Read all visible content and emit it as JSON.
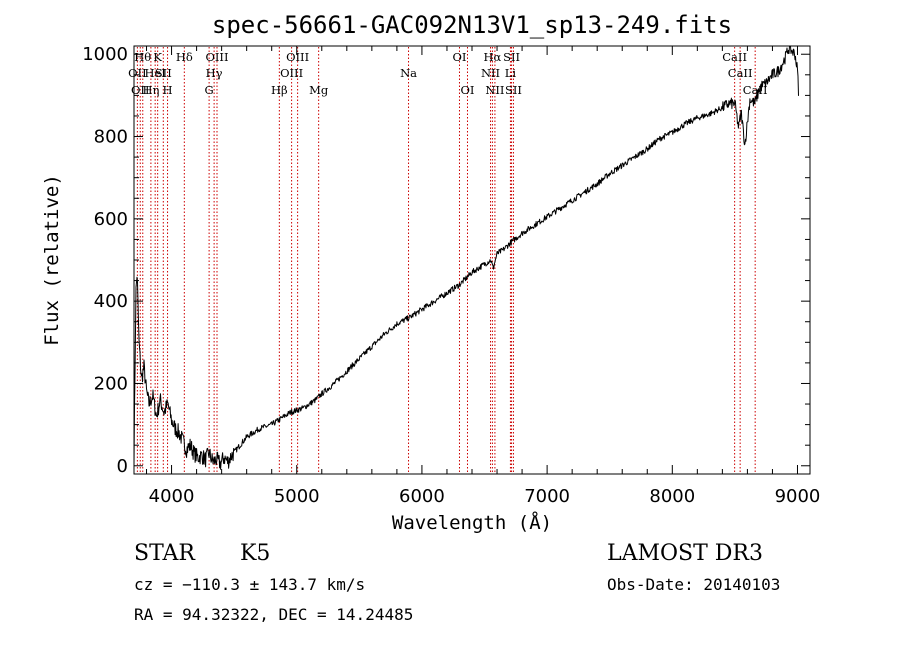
{
  "chart_data": {
    "type": "line",
    "title": "spec-56661-GAC092N13V1_sp13-249.fits",
    "xlabel": "Wavelength (Å)",
    "ylabel": "Flux (relative)",
    "xlim": [
      3700,
      9100
    ],
    "ylim": [
      -20,
      1020
    ],
    "x_ticks": [
      4000,
      5000,
      6000,
      7000,
      8000,
      9000
    ],
    "x_tick_labels": [
      "4000",
      "5000",
      "6000",
      "7000",
      "8000",
      "9000"
    ],
    "y_ticks": [
      0,
      200,
      400,
      600,
      800,
      1000
    ],
    "y_tick_labels": [
      "0",
      "200",
      "400",
      "600",
      "800",
      "1000"
    ],
    "series": [
      {
        "name": "spectrum",
        "color": "#000000",
        "x": [
          3700,
          3715,
          3725,
          3740,
          3760,
          3780,
          3800,
          3820,
          3850,
          3880,
          3910,
          3940,
          3970,
          4000,
          4030,
          4060,
          4090,
          4120,
          4150,
          4180,
          4210,
          4240,
          4270,
          4300,
          4330,
          4360,
          4390,
          4420,
          4450,
          4480,
          4520,
          4560,
          4600,
          4650,
          4700,
          4750,
          4800,
          4850,
          4900,
          4950,
          5000,
          5050,
          5100,
          5150,
          5200,
          5300,
          5400,
          5500,
          5600,
          5700,
          5800,
          5900,
          6000,
          6100,
          6200,
          6250,
          6300,
          6350,
          6400,
          6450,
          6500,
          6550,
          6570,
          6600,
          6650,
          6700,
          6800,
          6900,
          7000,
          7100,
          7200,
          7300,
          7400,
          7500,
          7600,
          7700,
          7800,
          7900,
          8000,
          8100,
          8200,
          8300,
          8400,
          8450,
          8500,
          8530,
          8550,
          8580,
          8620,
          8660,
          8700,
          8750,
          8800,
          8850,
          8900,
          8930,
          8950,
          8980,
          9000,
          9010
        ],
        "y": [
          20,
          420,
          470,
          300,
          210,
          240,
          180,
          150,
          170,
          120,
          160,
          130,
          150,
          110,
          90,
          80,
          60,
          40,
          50,
          30,
          20,
          25,
          15,
          30,
          10,
          15,
          5,
          20,
          10,
          25,
          40,
          55,
          70,
          80,
          90,
          95,
          100,
          110,
          120,
          130,
          135,
          140,
          150,
          160,
          175,
          200,
          230,
          260,
          290,
          320,
          345,
          360,
          380,
          400,
          420,
          430,
          440,
          455,
          470,
          480,
          490,
          500,
          480,
          515,
          525,
          540,
          565,
          585,
          605,
          625,
          645,
          665,
          685,
          710,
          730,
          750,
          770,
          795,
          810,
          830,
          845,
          855,
          870,
          880,
          880,
          820,
          860,
          780,
          890,
          880,
          920,
          930,
          950,
          960,
          990,
          1015,
          1010,
          1000,
          960,
          900
        ]
      }
    ],
    "line_markers": [
      {
        "x": 3727,
        "label": "OII",
        "row": 2
      },
      {
        "x": 3750,
        "label": "OII",
        "row": 3
      },
      {
        "x": 3770,
        "label": "Hθ",
        "row": 1
      },
      {
        "x": 3835,
        "label": "Hη",
        "row": 3
      },
      {
        "x": 3869,
        "label": "HeI",
        "row": 2
      },
      {
        "x": 3889,
        "label": "K",
        "row": 1
      },
      {
        "x": 3934,
        "label": "SII",
        "row": 2
      },
      {
        "x": 3968,
        "label": "H",
        "row": 3
      },
      {
        "x": 4102,
        "label": "Hδ",
        "row": 1
      },
      {
        "x": 4300,
        "label": "G",
        "row": 3
      },
      {
        "x": 4340,
        "label": "Hγ",
        "row": 2
      },
      {
        "x": 4363,
        "label": "OIII",
        "row": 1
      },
      {
        "x": 4861,
        "label": "Hβ",
        "row": 3
      },
      {
        "x": 4959,
        "label": "OIII",
        "row": 2
      },
      {
        "x": 5007,
        "label": "OIII",
        "row": 1
      },
      {
        "x": 5175,
        "label": "Mg",
        "row": 3
      },
      {
        "x": 5893,
        "label": "Na",
        "row": 2
      },
      {
        "x": 6300,
        "label": "OI",
        "row": 1
      },
      {
        "x": 6364,
        "label": "OI",
        "row": 3
      },
      {
        "x": 6548,
        "label": "NII",
        "row": 2
      },
      {
        "x": 6563,
        "label": "Hα",
        "row": 1
      },
      {
        "x": 6583,
        "label": "NII",
        "row": 3
      },
      {
        "x": 6707,
        "label": "Li",
        "row": 2
      },
      {
        "x": 6716,
        "label": "SII",
        "row": 1
      },
      {
        "x": 6731,
        "label": "SII",
        "row": 3
      },
      {
        "x": 8498,
        "label": "CaII",
        "row": 1
      },
      {
        "x": 8542,
        "label": "CaII",
        "row": 2
      },
      {
        "x": 8662,
        "label": "CaII",
        "row": 3
      }
    ],
    "marker_color": "#cc0000"
  },
  "info": {
    "object_class": "STAR",
    "subclass": "K5",
    "survey": "LAMOST DR3",
    "redshift": "cz = −110.3 ± 143.7 km/s",
    "obs_date": "Obs-Date: 20140103",
    "coordinates": "RA =  94.32322, DEC =  14.24485"
  }
}
